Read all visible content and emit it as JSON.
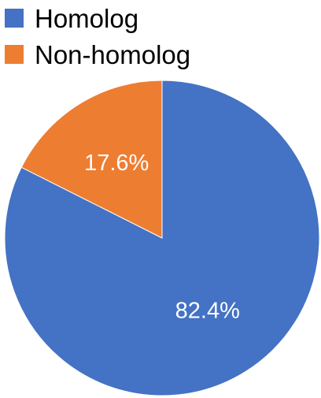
{
  "chart_data": {
    "type": "pie",
    "title": "",
    "legend_position": "top-left",
    "slices": [
      {
        "label": "Homolog",
        "value": 82.4,
        "display": "82.4%",
        "color": "#4472C4"
      },
      {
        "label": "Non-homolog",
        "value": 17.6,
        "display": "17.6%",
        "color": "#ED7D31"
      }
    ]
  }
}
